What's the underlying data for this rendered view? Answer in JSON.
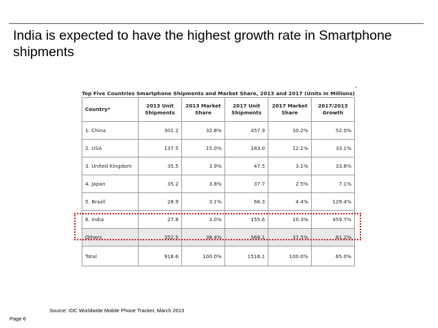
{
  "slide": {
    "title": "India is expected to have the highest growth rate in Smartphone shipments",
    "corner_mark": "-",
    "source": "Source: IDC Worldwide Mobile Phone Tracker, March 2013",
    "page": "Page 6"
  },
  "table": {
    "caption": "Top Five Countries Smartphone Shipments and Market Share, 2013 and 2017 (Units in Millions)",
    "headers": [
      "Country*",
      "2013 Unit Shipments",
      "2013 Market Share",
      "2017 Unit Shipments",
      "2017 Market Share",
      "2017/2013 Growth"
    ],
    "rows": [
      [
        "1. China",
        "301.2",
        "32.8%",
        "457.9",
        "30.2%",
        "52.0%"
      ],
      [
        "2. USA",
        "137.5",
        "15.0%",
        "183.0",
        "12.1%",
        "33.1%"
      ],
      [
        "3. United Kingdom",
        "35.5",
        "3.9%",
        "47.5",
        "3.1%",
        "33.8%"
      ],
      [
        "4. Japan",
        "35.2",
        "3.8%",
        "37.7",
        "2.5%",
        "7.1%"
      ],
      [
        "5. Brazil",
        "28.9",
        "3.1%",
        "66.3",
        "4.4%",
        "129.4%"
      ],
      [
        "6. India",
        "27.8",
        "3.0%",
        "155.6",
        "10.3%",
        "459.7%"
      ],
      [
        "Others",
        "352.5",
        "38.4%",
        "568.1",
        "37.5%",
        "61.2%"
      ],
      [
        "Total",
        "918.6",
        "100.0%",
        "1516.1",
        "100.0%",
        "65.0%"
      ]
    ],
    "highlighted_row": "6. India",
    "highlight_color": "#cc1111"
  }
}
